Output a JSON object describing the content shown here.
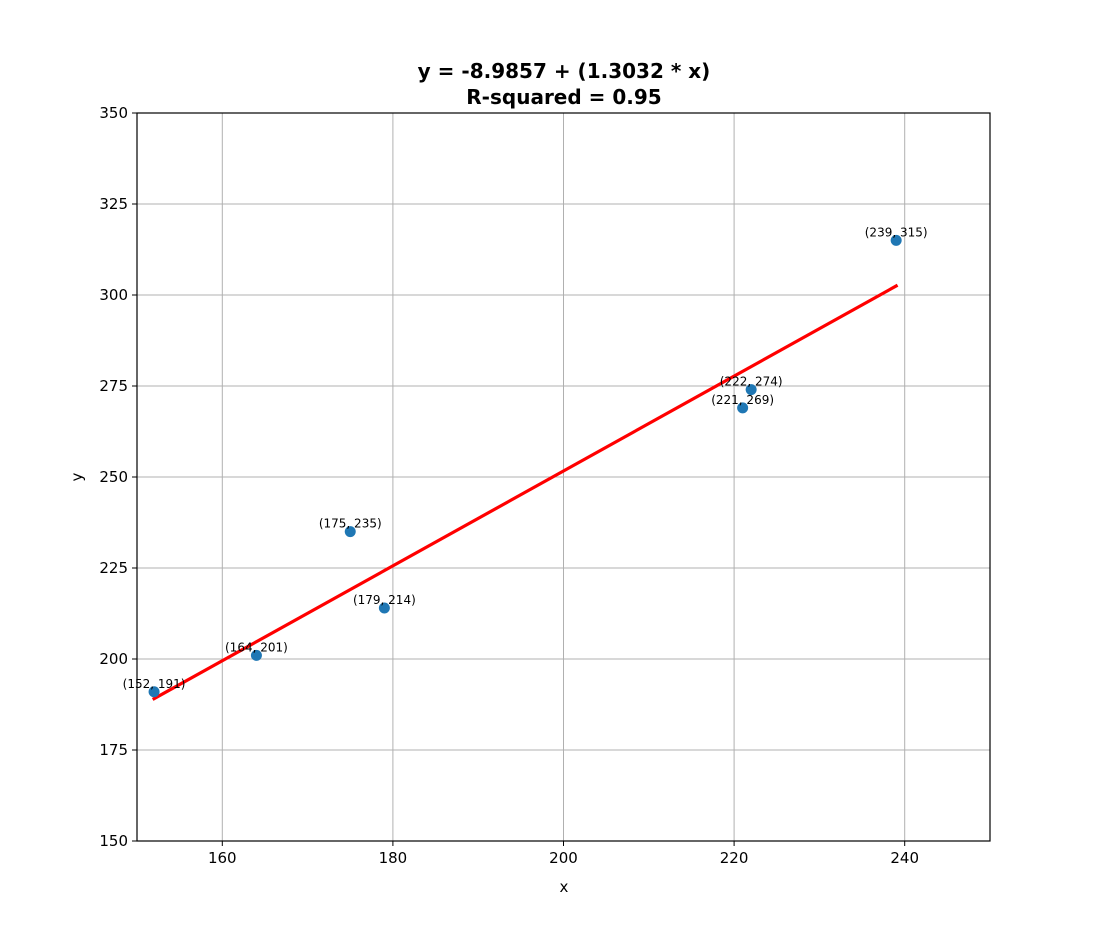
{
  "chart_data": {
    "type": "scatter",
    "title_line1": "y = -8.9857 + (1.3032 * x)",
    "title_line2": "R-squared = 0.95",
    "xlabel": "x",
    "ylabel": "y",
    "xlim": [
      150,
      250
    ],
    "ylim": [
      150,
      350
    ],
    "xticks": [
      160,
      180,
      200,
      220,
      240
    ],
    "yticks": [
      150,
      175,
      200,
      225,
      250,
      275,
      300,
      325,
      350
    ],
    "grid": true,
    "points": [
      {
        "x": 152,
        "y": 191,
        "label": "(152, 191)"
      },
      {
        "x": 164,
        "y": 201,
        "label": "(164, 201)"
      },
      {
        "x": 175,
        "y": 235,
        "label": "(175, 235)"
      },
      {
        "x": 179,
        "y": 214,
        "label": "(179, 214)"
      },
      {
        "x": 221,
        "y": 269,
        "label": "(221, 269)"
      },
      {
        "x": 222,
        "y": 274,
        "label": "(222, 274)"
      },
      {
        "x": 239,
        "y": 315,
        "label": "(239, 315)"
      }
    ],
    "fit_line": {
      "intercept": -8.9857,
      "slope": 1.3032,
      "x_start": 152,
      "x_end": 239
    },
    "colors": {
      "points": "#1f77b4",
      "fit_line": "#ff0000",
      "grid": "#b0b0b0",
      "axes": "#000000"
    }
  }
}
